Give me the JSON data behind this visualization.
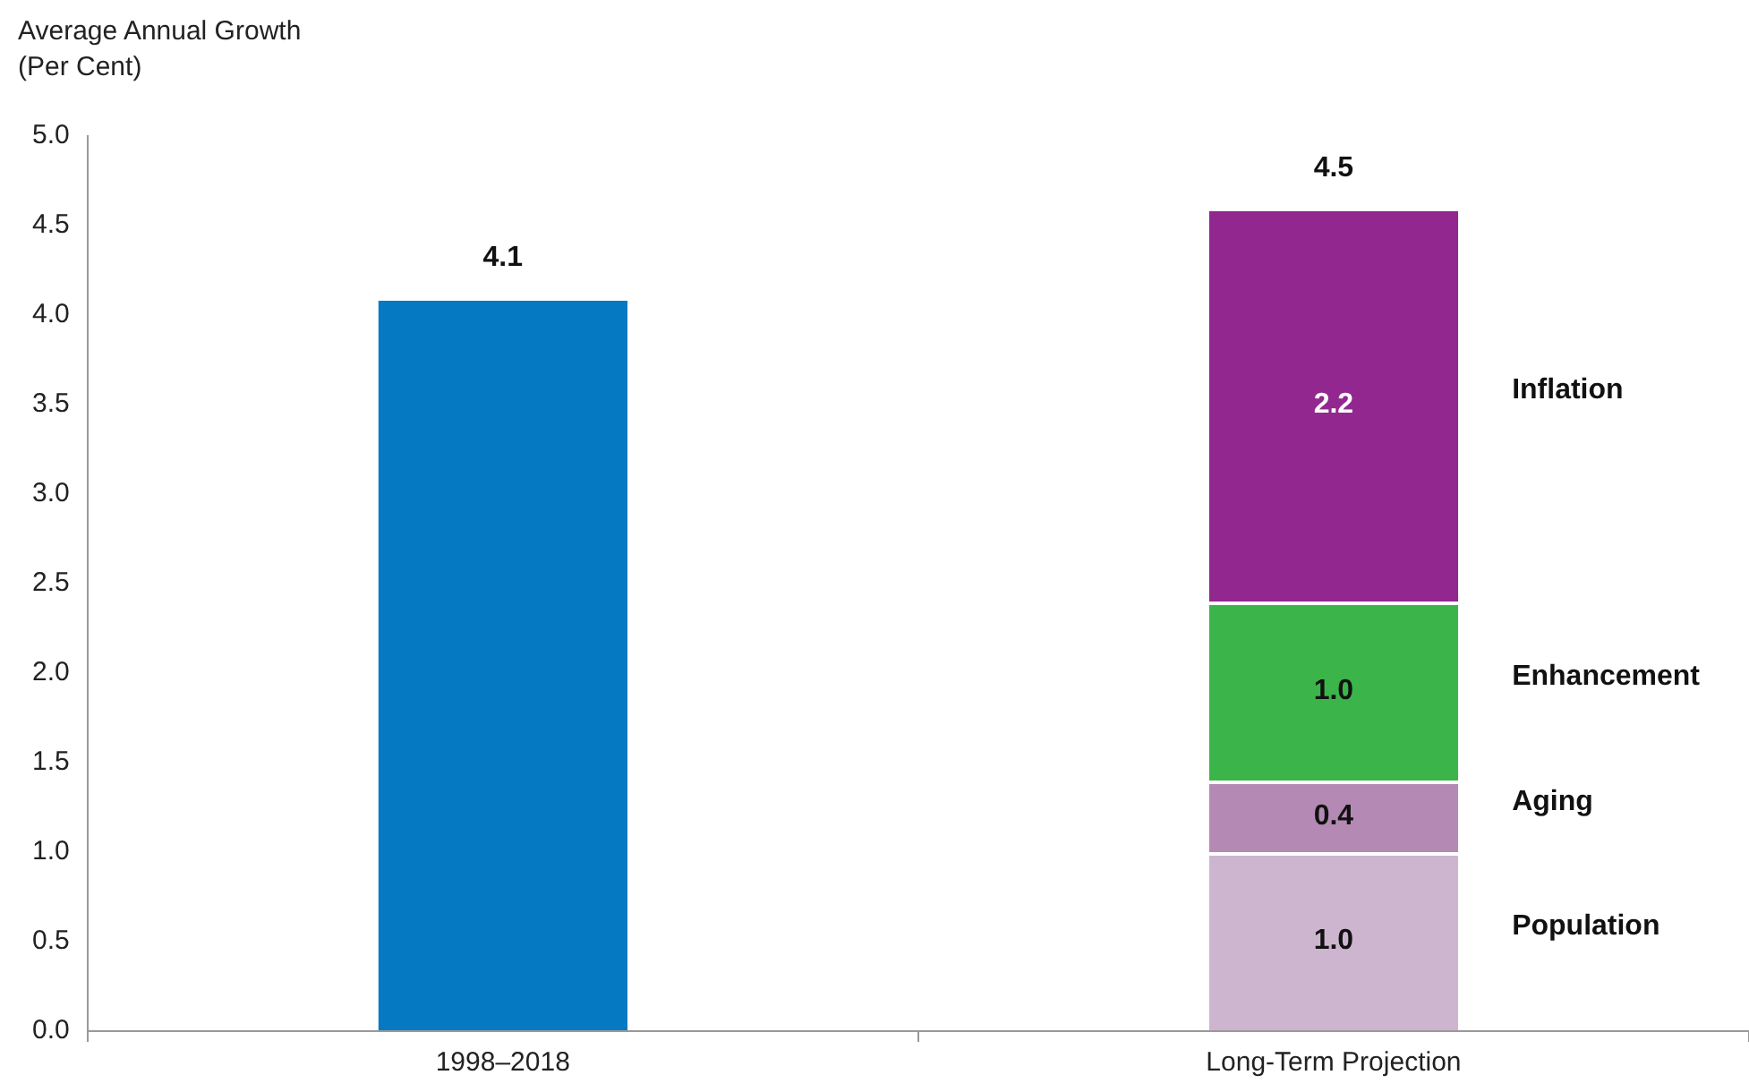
{
  "chart_data": {
    "type": "bar",
    "ylabel": "Average Annual Growth (Per Cent)",
    "categories": [
      "1998–2018",
      "Long-Term Projection"
    ],
    "stacked": true,
    "legend": false,
    "grid": false,
    "series": [
      {
        "color": "#0579c1",
        "values": [
          4.1,
          null
        ],
        "value_labels": [
          "4.1",
          null
        ]
      },
      {
        "name": "Population",
        "color": "#cdb5cf",
        "values": [
          null,
          1.0
        ],
        "value_labels": [
          null,
          "1.0"
        ]
      },
      {
        "name": "Aging",
        "color": "#b48ab4",
        "values": [
          null,
          0.4
        ],
        "value_labels": [
          null,
          "0.4"
        ]
      },
      {
        "name": "Enhancement",
        "color": "#3bb54a",
        "values": [
          null,
          1.0
        ],
        "value_labels": [
          null,
          "1.0"
        ]
      },
      {
        "name": "Inflation",
        "color": "#92278f",
        "values": [
          null,
          2.2
        ],
        "value_labels": [
          null,
          "2.2"
        ]
      }
    ],
    "totals": [
      null,
      "4.5"
    ],
    "ylim": [
      0,
      5
    ],
    "yticks": [
      {
        "value": 0,
        "label": "0.0"
      },
      {
        "value": 0.5,
        "label": "0.5"
      },
      {
        "value": 1,
        "label": "1.0"
      },
      {
        "value": 1.5,
        "label": "1.5"
      },
      {
        "value": 2,
        "label": "2.0"
      },
      {
        "value": 2.5,
        "label": "2.5"
      },
      {
        "value": 3,
        "label": "3.0"
      },
      {
        "value": 3.5,
        "label": "3.5"
      },
      {
        "value": 4,
        "label": "4.0"
      },
      {
        "value": 4.5,
        "label": "4.5"
      },
      {
        "value": 5,
        "label": "5.0"
      }
    ]
  }
}
